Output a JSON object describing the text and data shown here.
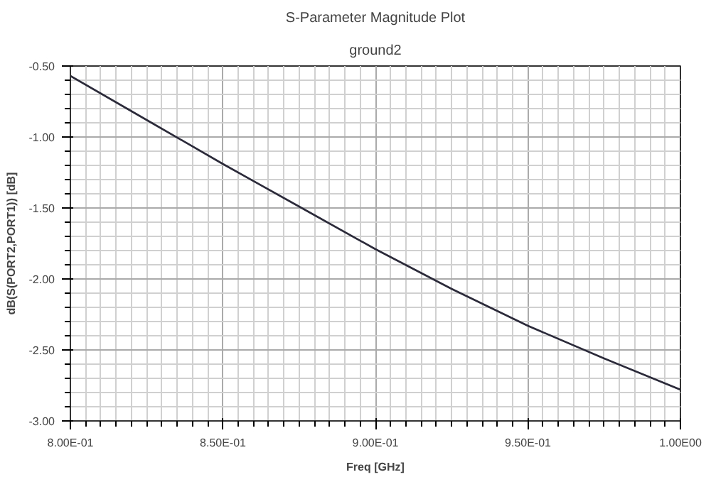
{
  "chart_data": {
    "type": "line",
    "title": "S-Parameter Magnitude Plot",
    "subtitle": "ground2",
    "xlabel": "Freq [GHz]",
    "ylabel": "dB(S(PORT2,PORT1)) [dB]",
    "x": [
      0.8,
      0.825,
      0.85,
      0.875,
      0.9,
      0.925,
      0.95,
      0.975,
      1.0
    ],
    "series": [
      {
        "color": "#2a2a3a",
        "values": [
          -0.57,
          -0.88,
          -1.19,
          -1.49,
          -1.79,
          -2.07,
          -2.33,
          -2.56,
          -2.78
        ]
      }
    ],
    "xlim": [
      0.8,
      1.0
    ],
    "ylim": [
      -3.0,
      -0.5
    ],
    "xticks": [
      {
        "value": 0.8,
        "label": "8.00E-01"
      },
      {
        "value": 0.85,
        "label": "8.50E-01"
      },
      {
        "value": 0.9,
        "label": "9.00E-01"
      },
      {
        "value": 0.95,
        "label": "9.50E-01"
      },
      {
        "value": 1.0,
        "label": "1.00E00"
      }
    ],
    "yticks": [
      {
        "value": -3.0,
        "label": "-3.00"
      },
      {
        "value": -2.5,
        "label": "-2.50"
      },
      {
        "value": -2.0,
        "label": "-2.00"
      },
      {
        "value": -1.5,
        "label": "-1.50"
      },
      {
        "value": -1.0,
        "label": "-1.00"
      },
      {
        "value": -0.5,
        "label": "-0.50"
      }
    ],
    "grid": true,
    "marker": "none",
    "line_style": "solid"
  }
}
